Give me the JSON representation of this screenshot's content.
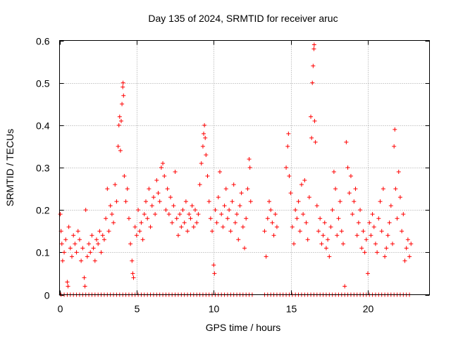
{
  "chart_data": {
    "type": "scatter",
    "title": "Day 135 of 2024, SRMTID for receiver aruc",
    "xlabel": "GPS time / hours",
    "ylabel": "SRMTID / TECUs",
    "xlim": [
      0,
      24
    ],
    "ylim": [
      0,
      0.6
    ],
    "x_ticks": [
      0,
      5,
      10,
      15,
      20
    ],
    "x_tick_labels": [
      "0",
      "5",
      "10",
      "15",
      "20"
    ],
    "y_ticks": [
      0,
      0.1,
      0.2,
      0.3,
      0.4,
      0.5,
      0.6
    ],
    "y_tick_labels": [
      "0",
      "0.1",
      "0.2",
      "0.3",
      "0.4",
      "0.5",
      "0.6"
    ],
    "grid": true,
    "marker": "plus",
    "series": [
      {
        "name": "SRMTID",
        "color": "#ff0000",
        "points": [
          [
            0.05,
            0.19
          ],
          [
            0.1,
            0.15
          ],
          [
            0.15,
            0.12
          ],
          [
            0.2,
            0.08
          ],
          [
            0.3,
            0.1
          ],
          [
            0.4,
            0.13
          ],
          [
            0.5,
            0.03
          ],
          [
            0.55,
            0.02
          ],
          [
            0.6,
            0.16
          ],
          [
            0.7,
            0.11
          ],
          [
            0.8,
            0.09
          ],
          [
            0.9,
            0.14
          ],
          [
            1.0,
            0.12
          ],
          [
            1.1,
            0.1
          ],
          [
            1.2,
            0.15
          ],
          [
            1.3,
            0.13
          ],
          [
            1.4,
            0.08
          ],
          [
            1.5,
            0.11
          ],
          [
            1.6,
            0.04
          ],
          [
            1.65,
            0.02
          ],
          [
            1.7,
            0.2
          ],
          [
            1.8,
            0.09
          ],
          [
            1.9,
            0.12
          ],
          [
            2.0,
            0.1
          ],
          [
            2.1,
            0.14
          ],
          [
            2.2,
            0.11
          ],
          [
            2.3,
            0.08
          ],
          [
            2.4,
            0.13
          ],
          [
            2.5,
            0.12
          ],
          [
            2.6,
            0.15
          ],
          [
            2.7,
            0.1
          ],
          [
            2.8,
            0.14
          ],
          [
            2.9,
            0.13
          ],
          [
            3.0,
            0.18
          ],
          [
            3.1,
            0.25
          ],
          [
            3.2,
            0.15
          ],
          [
            3.3,
            0.21
          ],
          [
            3.4,
            0.19
          ],
          [
            3.5,
            0.17
          ],
          [
            3.6,
            0.26
          ],
          [
            3.7,
            0.22
          ],
          [
            3.8,
            0.35
          ],
          [
            3.85,
            0.4
          ],
          [
            3.9,
            0.42
          ],
          [
            3.95,
            0.34
          ],
          [
            4.0,
            0.41
          ],
          [
            4.05,
            0.45
          ],
          [
            4.1,
            0.49
          ],
          [
            4.12,
            0.5
          ],
          [
            4.15,
            0.47
          ],
          [
            4.2,
            0.28
          ],
          [
            4.3,
            0.22
          ],
          [
            4.4,
            0.25
          ],
          [
            4.5,
            0.18
          ],
          [
            4.6,
            0.12
          ],
          [
            4.7,
            0.08
          ],
          [
            4.75,
            0.05
          ],
          [
            4.8,
            0.04
          ],
          [
            4.9,
            0.16
          ],
          [
            5.0,
            0.14
          ],
          [
            5.1,
            0.2
          ],
          [
            5.2,
            0.15
          ],
          [
            5.3,
            0.17
          ],
          [
            5.4,
            0.13
          ],
          [
            5.5,
            0.19
          ],
          [
            5.6,
            0.22
          ],
          [
            5.7,
            0.18
          ],
          [
            5.8,
            0.25
          ],
          [
            5.9,
            0.16
          ],
          [
            6.0,
            0.21
          ],
          [
            6.1,
            0.23
          ],
          [
            6.2,
            0.19
          ],
          [
            6.3,
            0.27
          ],
          [
            6.4,
            0.24
          ],
          [
            6.5,
            0.22
          ],
          [
            6.6,
            0.3
          ],
          [
            6.7,
            0.31
          ],
          [
            6.8,
            0.28
          ],
          [
            6.9,
            0.2
          ],
          [
            7.0,
            0.25
          ],
          [
            7.1,
            0.19
          ],
          [
            7.2,
            0.23
          ],
          [
            7.3,
            0.17
          ],
          [
            7.4,
            0.21
          ],
          [
            7.5,
            0.29
          ],
          [
            7.6,
            0.18
          ],
          [
            7.7,
            0.14
          ],
          [
            7.8,
            0.19
          ],
          [
            7.9,
            0.16
          ],
          [
            8.0,
            0.2
          ],
          [
            8.1,
            0.17
          ],
          [
            8.2,
            0.22
          ],
          [
            8.3,
            0.15
          ],
          [
            8.4,
            0.19
          ],
          [
            8.5,
            0.18
          ],
          [
            8.6,
            0.21
          ],
          [
            8.7,
            0.16
          ],
          [
            8.8,
            0.2
          ],
          [
            8.9,
            0.17
          ],
          [
            9.0,
            0.19
          ],
          [
            9.1,
            0.26
          ],
          [
            9.2,
            0.31
          ],
          [
            9.3,
            0.35
          ],
          [
            9.35,
            0.38
          ],
          [
            9.4,
            0.4
          ],
          [
            9.45,
            0.37
          ],
          [
            9.5,
            0.33
          ],
          [
            9.6,
            0.28
          ],
          [
            9.7,
            0.22
          ],
          [
            9.8,
            0.18
          ],
          [
            9.9,
            0.15
          ],
          [
            10.0,
            0.07
          ],
          [
            10.05,
            0.05
          ],
          [
            10.1,
            0.2
          ],
          [
            10.2,
            0.17
          ],
          [
            10.3,
            0.23
          ],
          [
            10.4,
            0.29
          ],
          [
            10.5,
            0.19
          ],
          [
            10.6,
            0.16
          ],
          [
            10.7,
            0.21
          ],
          [
            10.8,
            0.25
          ],
          [
            10.9,
            0.18
          ],
          [
            11.0,
            0.2
          ],
          [
            11.1,
            0.15
          ],
          [
            11.2,
            0.22
          ],
          [
            11.3,
            0.26
          ],
          [
            11.4,
            0.17
          ],
          [
            11.5,
            0.19
          ],
          [
            11.6,
            0.13
          ],
          [
            11.7,
            0.21
          ],
          [
            11.8,
            0.24
          ],
          [
            11.9,
            0.16
          ],
          [
            12.0,
            0.11
          ],
          [
            12.1,
            0.18
          ],
          [
            12.2,
            0.25
          ],
          [
            12.3,
            0.32
          ],
          [
            12.35,
            0.3
          ],
          [
            12.4,
            0.22
          ],
          [
            13.3,
            0.15
          ],
          [
            13.4,
            0.09
          ],
          [
            13.5,
            0.18
          ],
          [
            13.6,
            0.22
          ],
          [
            13.7,
            0.2
          ],
          [
            13.8,
            0.17
          ],
          [
            13.9,
            0.14
          ],
          [
            14.0,
            0.19
          ],
          [
            14.1,
            0.16
          ],
          [
            14.7,
            0.3
          ],
          [
            14.8,
            0.35
          ],
          [
            14.85,
            0.38
          ],
          [
            14.9,
            0.28
          ],
          [
            15.0,
            0.24
          ],
          [
            15.1,
            0.16
          ],
          [
            15.2,
            0.12
          ],
          [
            15.3,
            0.2
          ],
          [
            15.4,
            0.18
          ],
          [
            15.5,
            0.22
          ],
          [
            15.6,
            0.15
          ],
          [
            15.7,
            0.26
          ],
          [
            15.8,
            0.19
          ],
          [
            15.9,
            0.27
          ],
          [
            16.0,
            0.17
          ],
          [
            16.1,
            0.13
          ],
          [
            16.2,
            0.23
          ],
          [
            16.3,
            0.42
          ],
          [
            16.35,
            0.37
          ],
          [
            16.4,
            0.5
          ],
          [
            16.45,
            0.54
          ],
          [
            16.5,
            0.58
          ],
          [
            16.52,
            0.59
          ],
          [
            16.55,
            0.41
          ],
          [
            16.6,
            0.36
          ],
          [
            16.7,
            0.21
          ],
          [
            16.8,
            0.15
          ],
          [
            16.9,
            0.18
          ],
          [
            17.0,
            0.12
          ],
          [
            17.1,
            0.14
          ],
          [
            17.2,
            0.17
          ],
          [
            17.3,
            0.11
          ],
          [
            17.4,
            0.13
          ],
          [
            17.5,
            0.09
          ],
          [
            17.6,
            0.16
          ],
          [
            17.7,
            0.2
          ],
          [
            17.8,
            0.29
          ],
          [
            17.9,
            0.25
          ],
          [
            18.0,
            0.14
          ],
          [
            18.1,
            0.18
          ],
          [
            18.2,
            0.22
          ],
          [
            18.3,
            0.15
          ],
          [
            18.4,
            0.12
          ],
          [
            18.5,
            0.02
          ],
          [
            18.6,
            0.36
          ],
          [
            18.7,
            0.3
          ],
          [
            18.8,
            0.24
          ],
          [
            18.9,
            0.28
          ],
          [
            19.0,
            0.19
          ],
          [
            19.1,
            0.22
          ],
          [
            19.2,
            0.25
          ],
          [
            19.3,
            0.14
          ],
          [
            19.4,
            0.17
          ],
          [
            19.5,
            0.2
          ],
          [
            19.6,
            0.11
          ],
          [
            19.7,
            0.15
          ],
          [
            19.8,
            0.1
          ],
          [
            19.9,
            0.13
          ],
          [
            20.0,
            0.05
          ],
          [
            20.1,
            0.17
          ],
          [
            20.2,
            0.14
          ],
          [
            20.3,
            0.19
          ],
          [
            20.4,
            0.16
          ],
          [
            20.5,
            0.12
          ],
          [
            20.6,
            0.1
          ],
          [
            20.7,
            0.18
          ],
          [
            20.8,
            0.22
          ],
          [
            20.9,
            0.15
          ],
          [
            21.0,
            0.25
          ],
          [
            21.1,
            0.09
          ],
          [
            21.2,
            0.11
          ],
          [
            21.3,
            0.14
          ],
          [
            21.4,
            0.17
          ],
          [
            21.5,
            0.21
          ],
          [
            21.6,
            0.12
          ],
          [
            21.7,
            0.35
          ],
          [
            21.75,
            0.39
          ],
          [
            21.8,
            0.25
          ],
          [
            21.9,
            0.18
          ],
          [
            22.0,
            0.29
          ],
          [
            22.1,
            0.23
          ],
          [
            22.2,
            0.15
          ],
          [
            22.3,
            0.19
          ],
          [
            22.4,
            0.08
          ],
          [
            22.5,
            0.11
          ],
          [
            22.6,
            0.13
          ],
          [
            22.7,
            0.09
          ],
          [
            22.8,
            0.12
          ]
        ],
        "zero_points": [
          0.1,
          0.3,
          0.5,
          0.7,
          0.9,
          1.1,
          1.3,
          1.5,
          1.7,
          1.9,
          2.1,
          2.3,
          2.5,
          2.7,
          2.9,
          3.1,
          3.3,
          3.5,
          3.7,
          3.9,
          4.1,
          4.3,
          4.5,
          4.7,
          4.9,
          5.1,
          5.3,
          5.5,
          5.7,
          5.9,
          6.1,
          6.3,
          6.5,
          6.7,
          6.9,
          7.1,
          7.3,
          7.5,
          7.7,
          7.9,
          8.1,
          8.3,
          8.5,
          8.7,
          8.9,
          9.1,
          9.3,
          9.5,
          9.7,
          9.9,
          10.1,
          10.3,
          10.5,
          10.7,
          10.9,
          11.1,
          11.3,
          11.5,
          11.7,
          11.9,
          12.1,
          12.3,
          12.5,
          13.3,
          13.5,
          13.7,
          13.9,
          14.1,
          14.3,
          14.5,
          14.7,
          14.9,
          15.1,
          15.3,
          15.5,
          15.7,
          15.9,
          16.1,
          16.3,
          16.5,
          16.7,
          16.9,
          17.1,
          17.3,
          17.5,
          17.7,
          17.9,
          18.1,
          18.3,
          18.5,
          18.7,
          18.9,
          19.1,
          19.3,
          19.5,
          19.7,
          19.9,
          20.1,
          20.3,
          20.5,
          20.7,
          20.9,
          21.1,
          21.3,
          21.5,
          21.7,
          21.9,
          22.1,
          22.3,
          22.5,
          22.7
        ]
      }
    ]
  }
}
